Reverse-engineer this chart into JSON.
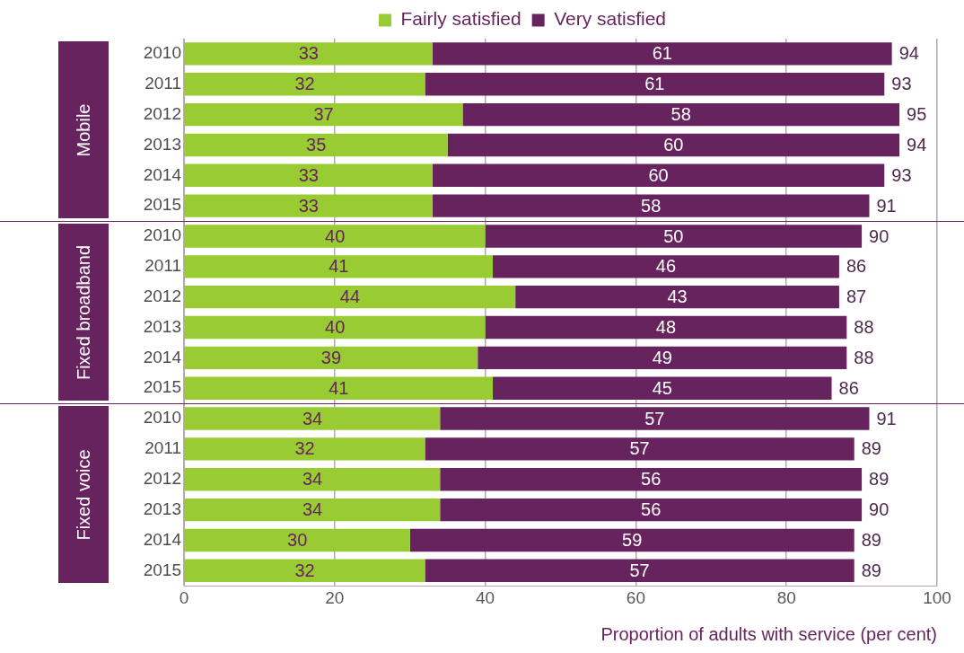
{
  "chart_data": {
    "type": "bar",
    "orientation": "horizontal",
    "stacked": true,
    "categories": [
      "2010",
      "2011",
      "2012",
      "2013",
      "2014",
      "2015",
      "2010",
      "2011",
      "2012",
      "2013",
      "2014",
      "2015",
      "2010",
      "2011",
      "2012",
      "2013",
      "2014",
      "2015"
    ],
    "series": [
      {
        "name": "Fairly satisfied",
        "color": "#99cc33",
        "values": [
          33,
          32,
          37,
          35,
          33,
          33,
          40,
          41,
          44,
          40,
          39,
          41,
          34,
          32,
          34,
          34,
          30,
          32
        ]
      },
      {
        "name": "Very satisfied",
        "color": "#66235e",
        "values": [
          61,
          61,
          58,
          60,
          60,
          58,
          50,
          46,
          43,
          48,
          49,
          45,
          57,
          57,
          56,
          56,
          59,
          57
        ]
      }
    ],
    "totals": [
      "94",
      "93",
      "95",
      "94",
      "93",
      "91",
      "90",
      "86",
      "87",
      "88",
      "88",
      "86",
      "91",
      "89",
      "89",
      "90",
      "89",
      "89"
    ],
    "data_labels": true,
    "xlim": [
      0,
      100
    ],
    "xticks": [
      0,
      20,
      40,
      60,
      80,
      100
    ],
    "xlabel": "Proportion of adults with service (per cent)",
    "annotations": [
      "Mobile",
      "Fixed broadband",
      "Fixed voice"
    ],
    "grid": "x",
    "legend": "top"
  }
}
